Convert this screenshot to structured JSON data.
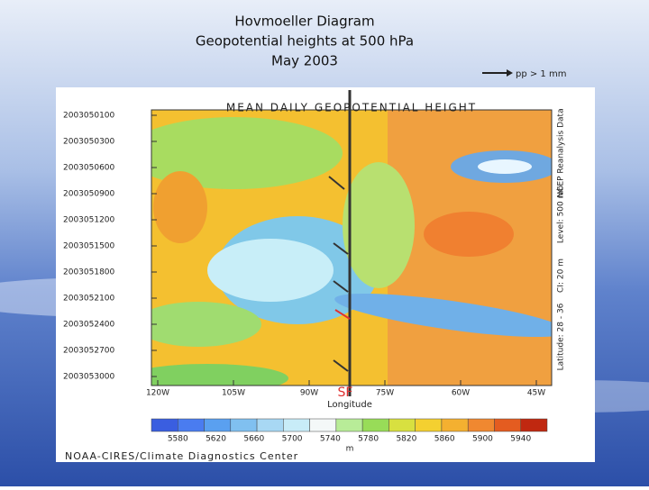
{
  "slide": {
    "title_lines": [
      "Hovmoeller Diagram",
      "Geopotential heights at 500 hPa",
      "May 2003"
    ],
    "legend": "pp > 1 mm"
  },
  "figure": {
    "title": "MEAN DAILY GEOPOTENTIAL HEIGHT",
    "y_labels": [
      "2003050100",
      "2003050300",
      "2003050600",
      "2003050900",
      "2003051200",
      "2003051500",
      "2003051800",
      "2003052100",
      "2003052400",
      "2003052700",
      "2003053000"
    ],
    "x_labels": [
      "120W",
      "105W",
      "90W",
      "75W",
      "60W",
      "45W"
    ],
    "x_axis_label": "Longitude",
    "marker": "SF",
    "side_notes": [
      "NCEP Reanalysis Data",
      "Level: 500 mb",
      "CI: 20 m",
      "Latitude: 28 - 36"
    ],
    "colorbar_labels": [
      "5580",
      "5620",
      "5660",
      "5700",
      "5740",
      "5780",
      "5820",
      "5860",
      "5900",
      "5940"
    ],
    "colorbar_unit": "m",
    "footer": "NOAA-CIRES/Climate Diagnostics Center"
  }
}
